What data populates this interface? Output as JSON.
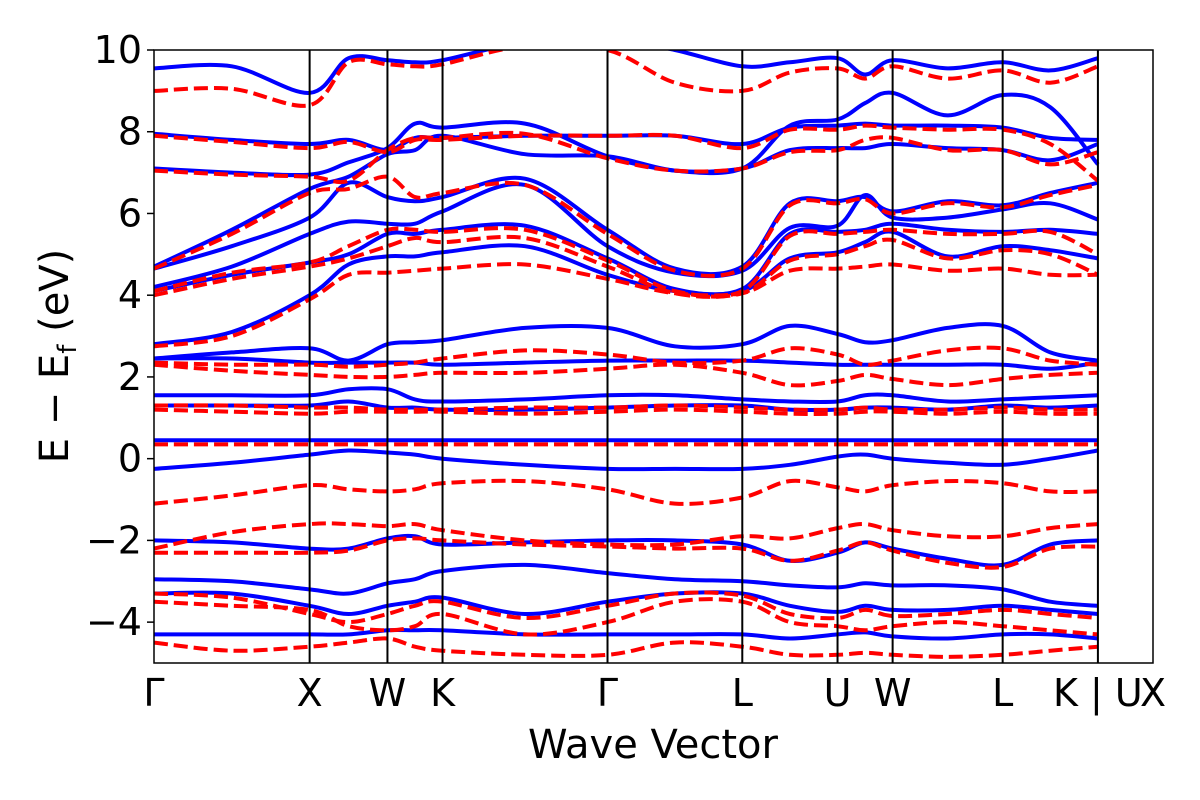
{
  "chart_data": {
    "type": "line",
    "xlabel": "Wave Vector",
    "ylabel": "E − E_f (eV)",
    "ylabel_main": "E − E",
    "ylabel_sub": "f",
    "ylabel_unit": " (eV)",
    "ylim": [
      -5,
      10
    ],
    "y_ticks": [
      10,
      8,
      6,
      4,
      2,
      0,
      -2,
      -4
    ],
    "y_tick_labels": [
      "10",
      "8",
      "6",
      "4",
      "2",
      "0",
      "−2",
      "−4"
    ],
    "k_points": [
      {
        "label": "Γ",
        "x": 0.0
      },
      {
        "label": "X",
        "x": 1.0
      },
      {
        "label": "W",
        "x": 1.5
      },
      {
        "label": "K",
        "x": 1.854
      },
      {
        "label": "Γ",
        "x": 2.914
      },
      {
        "label": "L",
        "x": 3.78
      },
      {
        "label": "U",
        "x": 4.392
      },
      {
        "label": "W",
        "x": 4.746
      },
      {
        "label": "L",
        "x": 5.453
      },
      {
        "label": "K | U",
        "x": 6.065
      },
      {
        "label": "X",
        "x": 6.419
      }
    ],
    "xlim": [
      0,
      6.419
    ],
    "grid": false,
    "legend": "none",
    "series": [
      {
        "color": "#0000ff",
        "style": "solid",
        "bands": [
          [
            9.55,
            9.6,
            8.95,
            9.8,
            9.75,
            9.7,
            9.75,
            10.2,
            10.3,
            10.0,
            9.6,
            9.7,
            9.8,
            9.4,
            9.75,
            9.55,
            9.7,
            9.5,
            9.8
          ],
          [
            7.95,
            7.8,
            7.7,
            7.8,
            7.55,
            7.85,
            7.85,
            7.9,
            7.9,
            7.9,
            7.7,
            8.1,
            8.15,
            8.2,
            8.15,
            8.15,
            8.1,
            7.85,
            7.8
          ],
          [
            7.1,
            7.0,
            6.95,
            7.25,
            7.6,
            8.2,
            8.1,
            8.2,
            7.4,
            7.05,
            7.1,
            8.15,
            8.3,
            8.7,
            8.95,
            8.4,
            8.9,
            8.6,
            7.2
          ],
          [
            4.7,
            5.6,
            6.6,
            6.9,
            7.45,
            7.55,
            7.9,
            7.45,
            7.4,
            7.05,
            7.1,
            7.55,
            7.6,
            7.6,
            7.7,
            7.6,
            7.55,
            7.3,
            7.7
          ],
          [
            4.65,
            5.2,
            5.9,
            6.75,
            6.4,
            6.3,
            6.4,
            6.85,
            5.6,
            4.65,
            4.7,
            6.25,
            6.3,
            6.4,
            6.05,
            6.3,
            6.2,
            6.5,
            6.75
          ],
          [
            4.2,
            4.7,
            5.5,
            5.8,
            5.75,
            5.75,
            6.05,
            6.7,
            5.2,
            4.55,
            4.6,
            5.65,
            5.7,
            6.45,
            5.9,
            5.9,
            6.1,
            6.25,
            5.85
          ],
          [
            4.1,
            4.5,
            4.8,
            5.0,
            5.5,
            5.5,
            5.6,
            5.7,
            4.9,
            4.15,
            4.15,
            5.5,
            5.55,
            5.6,
            5.75,
            5.6,
            5.55,
            5.6,
            5.5
          ],
          [
            2.8,
            3.1,
            4.0,
            4.75,
            4.95,
            4.95,
            5.05,
            5.2,
            4.5,
            4.1,
            4.1,
            4.9,
            5.05,
            5.3,
            5.55,
            4.95,
            5.2,
            5.1,
            4.9
          ],
          [
            2.45,
            2.6,
            2.7,
            2.4,
            2.8,
            2.85,
            2.9,
            3.2,
            3.2,
            2.75,
            2.8,
            3.25,
            3.05,
            2.85,
            2.9,
            3.2,
            3.25,
            2.6,
            2.4
          ],
          [
            2.45,
            2.45,
            2.35,
            2.35,
            2.35,
            2.35,
            2.3,
            2.35,
            2.4,
            2.4,
            2.4,
            2.35,
            2.3,
            2.3,
            2.3,
            2.3,
            2.3,
            2.2,
            2.35
          ],
          [
            1.55,
            1.55,
            1.55,
            1.7,
            1.7,
            1.45,
            1.4,
            1.45,
            1.55,
            1.55,
            1.45,
            1.4,
            1.4,
            1.55,
            1.55,
            1.4,
            1.45,
            1.5,
            1.55
          ],
          [
            1.3,
            1.3,
            1.3,
            1.4,
            1.25,
            1.25,
            1.2,
            1.2,
            1.25,
            1.3,
            1.3,
            1.2,
            1.2,
            1.25,
            1.25,
            1.2,
            1.3,
            1.25,
            1.3
          ],
          [
            0.45,
            0.45,
            0.45,
            0.45,
            0.45,
            0.45,
            0.45,
            0.45,
            0.45,
            0.45,
            0.45,
            0.45,
            0.45,
            0.45,
            0.45,
            0.45,
            0.45,
            0.45,
            0.45
          ],
          [
            -0.25,
            -0.1,
            0.1,
            0.2,
            0.15,
            0.1,
            0.0,
            -0.15,
            -0.25,
            -0.25,
            -0.25,
            -0.15,
            0.05,
            0.1,
            0.0,
            -0.1,
            -0.15,
            0.0,
            0.2
          ],
          [
            -2.0,
            -2.05,
            -2.2,
            -2.2,
            -1.95,
            -1.9,
            -2.1,
            -2.05,
            -2.0,
            -2.0,
            -2.1,
            -2.5,
            -2.3,
            -2.05,
            -2.2,
            -2.45,
            -2.6,
            -2.1,
            -2.0
          ],
          [
            -2.95,
            -3.0,
            -3.2,
            -3.3,
            -3.05,
            -2.95,
            -2.75,
            -2.6,
            -2.8,
            -2.95,
            -3.0,
            -3.1,
            -3.15,
            -3.05,
            -3.1,
            -3.1,
            -3.2,
            -3.5,
            -3.6
          ],
          [
            -3.3,
            -3.3,
            -3.6,
            -3.8,
            -3.6,
            -3.5,
            -3.4,
            -3.8,
            -3.5,
            -3.3,
            -3.3,
            -3.6,
            -3.75,
            -3.6,
            -3.7,
            -3.7,
            -3.6,
            -3.7,
            -3.8
          ],
          [
            -4.3,
            -4.3,
            -4.3,
            -4.3,
            -4.2,
            -4.2,
            -4.2,
            -4.3,
            -4.3,
            -4.3,
            -4.3,
            -4.4,
            -4.3,
            -4.25,
            -4.35,
            -4.4,
            -4.3,
            -4.3,
            -4.4
          ]
        ]
      },
      {
        "color": "#ff0000",
        "style": "dashed",
        "bands": [
          [
            9.0,
            9.05,
            8.65,
            9.7,
            9.65,
            9.6,
            9.65,
            10.1,
            10.0,
            9.2,
            9.0,
            9.45,
            9.55,
            9.3,
            9.6,
            9.3,
            9.5,
            9.2,
            9.6
          ],
          [
            7.9,
            7.75,
            7.6,
            7.75,
            7.5,
            7.8,
            7.8,
            7.9,
            7.9,
            7.9,
            7.6,
            8.05,
            8.05,
            8.15,
            8.1,
            8.05,
            8.05,
            7.7,
            6.8
          ],
          [
            7.05,
            6.95,
            6.9,
            6.8,
            7.55,
            7.85,
            7.85,
            7.95,
            7.35,
            7.05,
            7.1,
            7.5,
            7.55,
            7.8,
            7.85,
            7.55,
            7.55,
            7.2,
            7.5
          ],
          [
            4.65,
            5.5,
            6.5,
            6.6,
            6.9,
            6.4,
            6.5,
            6.7,
            5.5,
            4.6,
            4.65,
            6.2,
            6.25,
            6.35,
            6.0,
            6.25,
            6.15,
            6.45,
            6.7
          ],
          [
            4.1,
            4.55,
            4.8,
            5.2,
            5.6,
            5.6,
            5.55,
            5.6,
            4.85,
            4.1,
            4.1,
            5.45,
            5.5,
            5.55,
            5.6,
            5.5,
            5.5,
            5.55,
            5.0
          ],
          [
            4.0,
            4.4,
            4.7,
            4.9,
            5.2,
            5.4,
            5.3,
            5.4,
            4.7,
            4.05,
            4.05,
            4.85,
            5.0,
            5.2,
            5.35,
            4.9,
            5.1,
            5.0,
            4.5
          ],
          [
            2.75,
            3.0,
            3.9,
            4.5,
            4.55,
            4.6,
            4.65,
            4.75,
            4.4,
            4.05,
            4.05,
            4.6,
            4.65,
            4.7,
            4.75,
            4.6,
            4.65,
            4.5,
            4.5
          ],
          [
            2.35,
            2.3,
            2.3,
            2.25,
            2.3,
            2.35,
            2.45,
            2.65,
            2.55,
            2.35,
            2.4,
            2.7,
            2.55,
            2.3,
            2.4,
            2.65,
            2.7,
            2.4,
            2.3
          ],
          [
            2.3,
            2.15,
            2.05,
            2.0,
            2.0,
            2.05,
            2.1,
            2.1,
            2.2,
            2.3,
            2.1,
            1.8,
            1.9,
            2.05,
            1.95,
            1.8,
            1.95,
            2.05,
            2.1
          ],
          [
            1.3,
            1.3,
            1.25,
            1.25,
            1.2,
            1.2,
            1.2,
            1.25,
            1.25,
            1.3,
            1.25,
            1.2,
            1.2,
            1.25,
            1.2,
            1.2,
            1.25,
            1.2,
            1.2
          ],
          [
            1.2,
            1.15,
            1.1,
            1.15,
            1.15,
            1.15,
            1.15,
            1.1,
            1.15,
            1.2,
            1.15,
            1.1,
            1.1,
            1.15,
            1.15,
            1.1,
            1.15,
            1.1,
            1.1
          ],
          [
            0.35,
            0.35,
            0.35,
            0.35,
            0.35,
            0.35,
            0.35,
            0.35,
            0.35,
            0.35,
            0.35,
            0.35,
            0.35,
            0.35,
            0.35,
            0.35,
            0.35,
            0.35,
            0.35
          ],
          [
            -1.1,
            -0.9,
            -0.65,
            -0.75,
            -0.8,
            -0.75,
            -0.6,
            -0.55,
            -0.75,
            -1.1,
            -0.95,
            -0.55,
            -0.7,
            -0.8,
            -0.65,
            -0.55,
            -0.6,
            -0.8,
            -0.8
          ],
          [
            -2.2,
            -1.8,
            -1.6,
            -1.6,
            -1.65,
            -1.6,
            -1.75,
            -2.0,
            -2.1,
            -2.1,
            -1.9,
            -1.95,
            -1.7,
            -1.6,
            -1.75,
            -1.9,
            -1.9,
            -1.7,
            -1.6
          ],
          [
            -2.3,
            -2.3,
            -2.3,
            -2.25,
            -2.0,
            -1.95,
            -2.0,
            -2.1,
            -2.15,
            -2.2,
            -2.2,
            -2.5,
            -2.25,
            -2.05,
            -2.25,
            -2.55,
            -2.65,
            -2.2,
            -2.15
          ],
          [
            -3.3,
            -3.4,
            -3.8,
            -4.0,
            -3.8,
            -3.6,
            -3.5,
            -3.9,
            -3.6,
            -3.3,
            -3.35,
            -3.8,
            -3.9,
            -3.7,
            -3.85,
            -3.8,
            -3.7,
            -3.8,
            -3.9
          ],
          [
            -3.5,
            -3.6,
            -3.7,
            -4.1,
            -4.2,
            -4.1,
            -3.8,
            -4.3,
            -4.0,
            -3.5,
            -3.5,
            -4.0,
            -4.1,
            -4.2,
            -4.1,
            -4.0,
            -4.1,
            -4.2,
            -4.3
          ],
          [
            -4.5,
            -4.7,
            -4.6,
            -4.5,
            -4.4,
            -4.6,
            -4.7,
            -4.8,
            -4.8,
            -4.5,
            -4.6,
            -4.8,
            -4.8,
            -4.75,
            -4.8,
            -4.85,
            -4.8,
            -4.7,
            -4.6
          ]
        ]
      }
    ]
  }
}
